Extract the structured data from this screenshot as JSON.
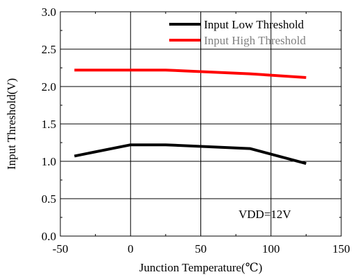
{
  "chart_data": {
    "type": "line",
    "title": "",
    "xlabel": "Junction Temperature(℃)",
    "ylabel": "Input Threshold(V)",
    "xlim": [
      -50,
      150
    ],
    "ylim": [
      0.0,
      3.0
    ],
    "x_ticks": [
      -50,
      0,
      50,
      100,
      150
    ],
    "x_tick_labels": [
      "-50",
      "0",
      "50",
      "100",
      "150"
    ],
    "y_ticks": [
      0.0,
      0.5,
      1.0,
      1.5,
      2.0,
      2.5,
      3.0
    ],
    "y_tick_labels": [
      "0.0",
      "0.5",
      "1.0",
      "1.5",
      "2.0",
      "2.5",
      "3.0"
    ],
    "grid": true,
    "legend_position": "top-right",
    "series": [
      {
        "name": "Input Low Threshold",
        "color": "#000000",
        "legend_text_color": "#000000",
        "x": [
          -40,
          0,
          25,
          85,
          125
        ],
        "values": [
          1.07,
          1.22,
          1.22,
          1.17,
          0.97
        ]
      },
      {
        "name": "Input High Threshold",
        "color": "#ff0000",
        "legend_text_color": "#808080",
        "x": [
          -40,
          0,
          25,
          85,
          125
        ],
        "values": [
          2.22,
          2.22,
          2.22,
          2.17,
          2.12
        ]
      }
    ],
    "annotations": [
      {
        "text": "VDD=12V",
        "position": "bottom-right"
      }
    ]
  }
}
